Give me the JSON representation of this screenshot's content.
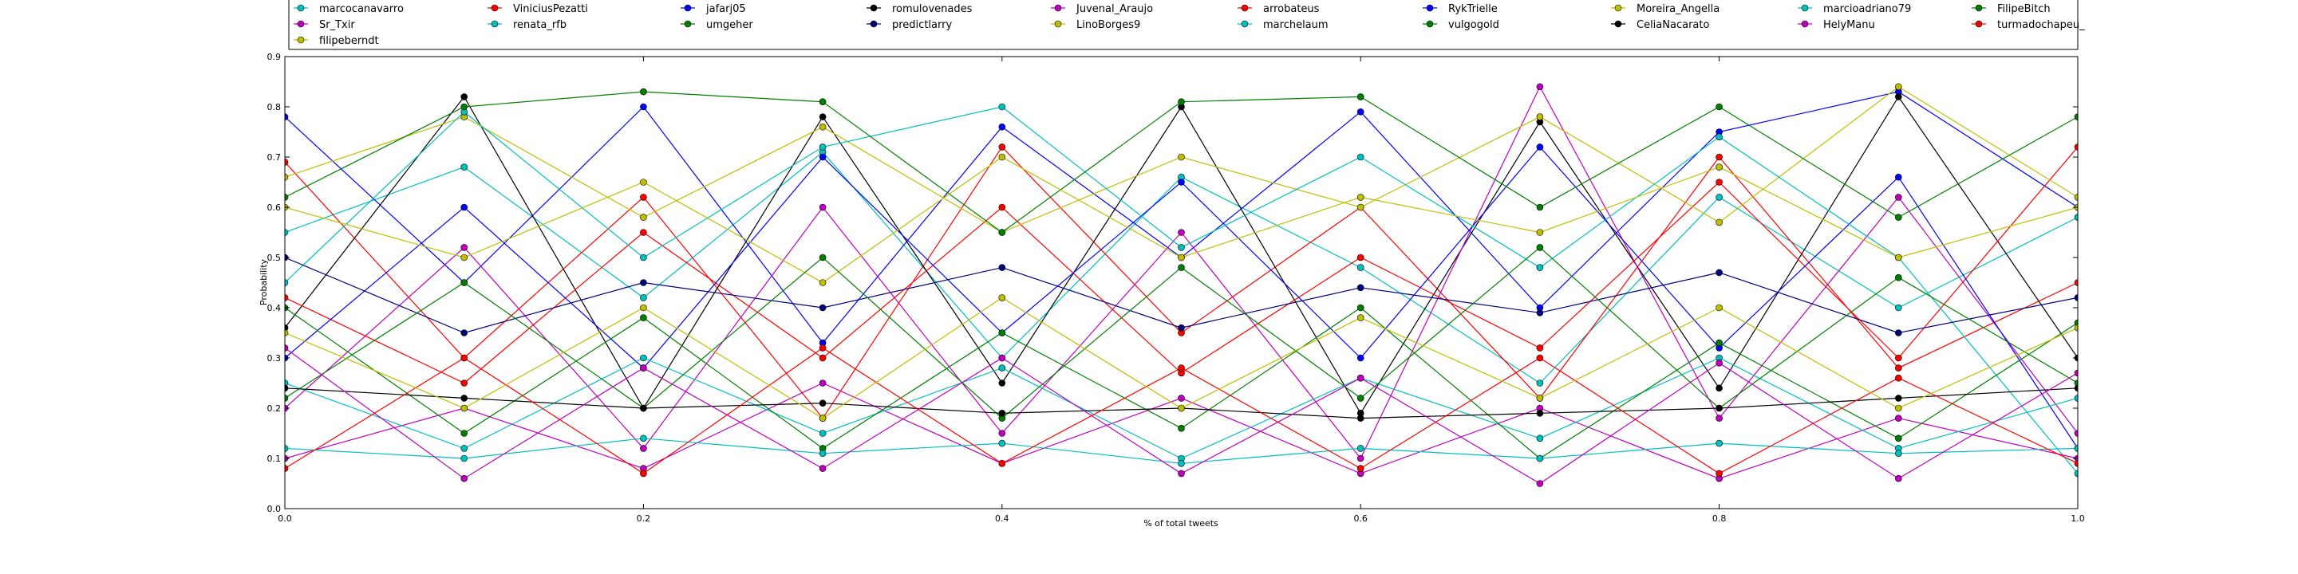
{
  "chart_data": {
    "type": "line",
    "xlabel": "% of total tweets",
    "ylabel": "Probability",
    "xlim": [
      0.0,
      1.0
    ],
    "ylim": [
      0.0,
      0.9
    ],
    "x_ticks": [
      "0.0",
      "0.2",
      "0.4",
      "0.6",
      "0.8",
      "1.0"
    ],
    "y_ticks": [
      "0.0",
      "0.1",
      "0.2",
      "0.3",
      "0.4",
      "0.5",
      "0.6",
      "0.7",
      "0.8",
      "0.9"
    ],
    "grid": false,
    "marker": "circle",
    "legend_placement": "top",
    "series": [
      {
        "name": "marcocanavarro",
        "color": "#00bfbf",
        "x": [
          0.0,
          0.1,
          0.2,
          0.3,
          0.4,
          0.5,
          0.6,
          0.7,
          0.8,
          0.9,
          1.0
        ],
        "values": [
          0.55,
          0.68,
          0.42,
          0.71,
          0.3,
          0.66,
          0.48,
          0.25,
          0.62,
          0.4,
          0.58
        ]
      },
      {
        "name": "ViniciusPezatti",
        "color": "#ff0000",
        "x": [
          0.0,
          0.1,
          0.2,
          0.3,
          0.4,
          0.5,
          0.6,
          0.7,
          0.8,
          0.9,
          1.0
        ],
        "values": [
          0.69,
          0.3,
          0.62,
          0.18,
          0.72,
          0.35,
          0.6,
          0.22,
          0.7,
          0.28,
          0.45
        ]
      },
      {
        "name": "jafarj05",
        "color": "#0000ff",
        "x": [
          0.0,
          0.1,
          0.2,
          0.3,
          0.4,
          0.5,
          0.6,
          0.7,
          0.8,
          0.9,
          1.0
        ],
        "values": [
          0.78,
          0.45,
          0.8,
          0.33,
          0.76,
          0.5,
          0.79,
          0.4,
          0.75,
          0.83,
          0.6
        ]
      },
      {
        "name": "romulovenades",
        "color": "#000000",
        "x": [
          0.0,
          0.1,
          0.2,
          0.3,
          0.4,
          0.5,
          0.6,
          0.7,
          0.8,
          0.9,
          1.0
        ],
        "values": [
          0.36,
          0.82,
          0.2,
          0.78,
          0.25,
          0.8,
          0.19,
          0.77,
          0.24,
          0.82,
          0.3
        ]
      },
      {
        "name": "Juvenal_Araujo",
        "color": "#bf00bf",
        "x": [
          0.0,
          0.1,
          0.2,
          0.3,
          0.4,
          0.5,
          0.6,
          0.7,
          0.8,
          0.9,
          1.0
        ],
        "values": [
          0.2,
          0.52,
          0.12,
          0.6,
          0.15,
          0.55,
          0.1,
          0.84,
          0.18,
          0.62,
          0.15
        ]
      },
      {
        "name": "arrobateus",
        "color": "#ff0000",
        "x": [
          0.0,
          0.1,
          0.2,
          0.3,
          0.4,
          0.5,
          0.6,
          0.7,
          0.8,
          0.9,
          1.0
        ],
        "values": [
          0.42,
          0.25,
          0.55,
          0.3,
          0.6,
          0.27,
          0.5,
          0.32,
          0.65,
          0.3,
          0.72
        ]
      },
      {
        "name": "RykTrielle",
        "color": "#0000ff",
        "x": [
          0.0,
          0.1,
          0.2,
          0.3,
          0.4,
          0.5,
          0.6,
          0.7,
          0.8,
          0.9,
          1.0
        ],
        "values": [
          0.3,
          0.6,
          0.28,
          0.7,
          0.35,
          0.65,
          0.3,
          0.72,
          0.32,
          0.66,
          0.12
        ]
      },
      {
        "name": "Moreira_Angella",
        "color": "#bfbf00",
        "x": [
          0.0,
          0.1,
          0.2,
          0.3,
          0.4,
          0.5,
          0.6,
          0.7,
          0.8,
          0.9,
          1.0
        ],
        "values": [
          0.66,
          0.78,
          0.58,
          0.76,
          0.55,
          0.7,
          0.6,
          0.78,
          0.57,
          0.84,
          0.62
        ]
      },
      {
        "name": "marcioadriano79",
        "color": "#00bfbf",
        "x": [
          0.0,
          0.1,
          0.2,
          0.3,
          0.4,
          0.5,
          0.6,
          0.7,
          0.8,
          0.9,
          1.0
        ],
        "values": [
          0.45,
          0.79,
          0.5,
          0.72,
          0.8,
          0.52,
          0.7,
          0.48,
          0.74,
          0.5,
          0.07
        ]
      },
      {
        "name": "FilipeBitch",
        "color": "#007f00",
        "x": [
          0.0,
          0.1,
          0.2,
          0.3,
          0.4,
          0.5,
          0.6,
          0.7,
          0.8,
          0.9,
          1.0
        ],
        "values": [
          0.62,
          0.8,
          0.83,
          0.81,
          0.55,
          0.81,
          0.82,
          0.6,
          0.8,
          0.58,
          0.78
        ]
      },
      {
        "name": "Sr_Txir",
        "color": "#bf00bf",
        "x": [
          0.0,
          0.1,
          0.2,
          0.3,
          0.4,
          0.5,
          0.6,
          0.7,
          0.8,
          0.9,
          1.0
        ],
        "values": [
          0.1,
          0.2,
          0.08,
          0.25,
          0.09,
          0.22,
          0.07,
          0.2,
          0.06,
          0.18,
          0.1
        ]
      },
      {
        "name": "renata_rfb",
        "color": "#00bfbf",
        "x": [
          0.0,
          0.1,
          0.2,
          0.3,
          0.4,
          0.5,
          0.6,
          0.7,
          0.8,
          0.9,
          1.0
        ],
        "values": [
          0.25,
          0.12,
          0.3,
          0.15,
          0.28,
          0.1,
          0.26,
          0.14,
          0.3,
          0.12,
          0.22
        ]
      },
      {
        "name": "umgeher",
        "color": "#007f00",
        "x": [
          0.0,
          0.1,
          0.2,
          0.3,
          0.4,
          0.5,
          0.6,
          0.7,
          0.8,
          0.9,
          1.0
        ],
        "values": [
          0.4,
          0.15,
          0.38,
          0.12,
          0.35,
          0.16,
          0.4,
          0.1,
          0.33,
          0.14,
          0.37
        ]
      },
      {
        "name": "predictlarry",
        "color": "#00007f",
        "x": [
          0.0,
          0.1,
          0.2,
          0.3,
          0.4,
          0.5,
          0.6,
          0.7,
          0.8,
          0.9,
          1.0
        ],
        "values": [
          0.5,
          0.35,
          0.45,
          0.4,
          0.48,
          0.36,
          0.44,
          0.39,
          0.47,
          0.35,
          0.42
        ]
      },
      {
        "name": "LinoBorges9",
        "color": "#bfbf00",
        "x": [
          0.0,
          0.1,
          0.2,
          0.3,
          0.4,
          0.5,
          0.6,
          0.7,
          0.8,
          0.9,
          1.0
        ],
        "values": [
          0.6,
          0.5,
          0.65,
          0.45,
          0.7,
          0.5,
          0.62,
          0.55,
          0.68,
          0.5,
          0.6
        ]
      },
      {
        "name": "marchelaum",
        "color": "#00bfbf",
        "x": [
          0.0,
          0.1,
          0.2,
          0.3,
          0.4,
          0.5,
          0.6,
          0.7,
          0.8,
          0.9,
          1.0
        ],
        "values": [
          0.12,
          0.1,
          0.14,
          0.11,
          0.13,
          0.09,
          0.12,
          0.1,
          0.13,
          0.11,
          0.12
        ]
      },
      {
        "name": "vulgogold",
        "color": "#007f00",
        "x": [
          0.0,
          0.1,
          0.2,
          0.3,
          0.4,
          0.5,
          0.6,
          0.7,
          0.8,
          0.9,
          1.0
        ],
        "values": [
          0.22,
          0.45,
          0.2,
          0.5,
          0.18,
          0.48,
          0.22,
          0.52,
          0.2,
          0.46,
          0.25
        ]
      },
      {
        "name": "CeliaNacarato",
        "color": "#000000",
        "x": [
          0.0,
          0.1,
          0.2,
          0.3,
          0.4,
          0.5,
          0.6,
          0.7,
          0.8,
          0.9,
          1.0
        ],
        "values": [
          0.24,
          0.22,
          0.2,
          0.21,
          0.19,
          0.2,
          0.18,
          0.19,
          0.2,
          0.22,
          0.24
        ]
      },
      {
        "name": "HelyManu",
        "color": "#bf00bf",
        "x": [
          0.0,
          0.1,
          0.2,
          0.3,
          0.4,
          0.5,
          0.6,
          0.7,
          0.8,
          0.9,
          1.0
        ],
        "values": [
          0.32,
          0.06,
          0.28,
          0.08,
          0.3,
          0.07,
          0.26,
          0.05,
          0.29,
          0.06,
          0.27
        ]
      },
      {
        "name": "turmadochapeu_",
        "color": "#ff0000",
        "x": [
          0.0,
          0.1,
          0.2,
          0.3,
          0.4,
          0.5,
          0.6,
          0.7,
          0.8,
          0.9,
          1.0
        ],
        "values": [
          0.08,
          0.3,
          0.07,
          0.32,
          0.09,
          0.28,
          0.08,
          0.3,
          0.07,
          0.26,
          0.09
        ]
      },
      {
        "name": "filipeberndt",
        "color": "#bfbf00",
        "x": [
          0.0,
          0.1,
          0.2,
          0.3,
          0.4,
          0.5,
          0.6,
          0.7,
          0.8,
          0.9,
          1.0
        ],
        "values": [
          0.35,
          0.2,
          0.4,
          0.18,
          0.42,
          0.2,
          0.38,
          0.22,
          0.4,
          0.2,
          0.36
        ]
      }
    ]
  }
}
